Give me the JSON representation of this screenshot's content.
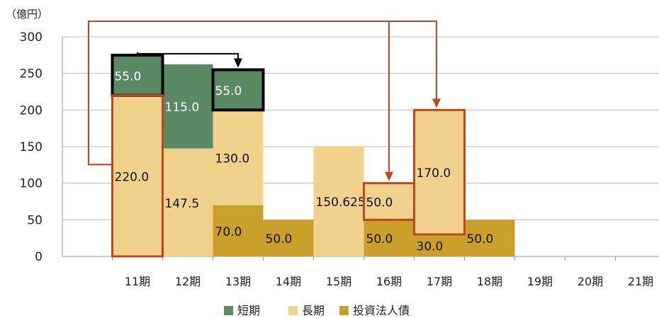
{
  "chart_data": {
    "type": "bar",
    "stacked": true,
    "unit_label": "（億円）",
    "ylim": [
      0,
      300
    ],
    "yticks": [
      "0",
      "50",
      "100",
      "150",
      "200",
      "250",
      "300"
    ],
    "categories": [
      "11期",
      "12期",
      "13期",
      "14期",
      "15期",
      "16期",
      "17期",
      "18期",
      "19期",
      "20期",
      "21期"
    ],
    "series": [
      {
        "name": "投資法人債",
        "color": "#c9a02a",
        "values": [
          0,
          0,
          70.0,
          50.0,
          0,
          50.0,
          30.0,
          50.0,
          0,
          0,
          0
        ],
        "labels": [
          "",
          "",
          "70.0",
          "50.0",
          "",
          "50.0",
          "30.0",
          "50.0",
          "",
          "",
          ""
        ]
      },
      {
        "name": "長期",
        "color": "#f0d28c",
        "values": [
          220.0,
          147.5,
          130.0,
          0,
          150.625,
          50.0,
          170.0,
          0,
          0,
          0,
          0
        ],
        "labels": [
          "220.0",
          "147.5",
          "130.0",
          "",
          "150.625",
          "50.0",
          "170.0",
          "",
          "",
          "",
          ""
        ]
      },
      {
        "name": "短期",
        "color": "#5a8a63",
        "values": [
          55.0,
          115.0,
          55.0,
          0,
          0,
          0,
          0,
          0,
          0,
          0,
          0
        ],
        "labels": [
          "55.0",
          "115.0",
          "55.0",
          "",
          "",
          "",
          "",
          "",
          "",
          "",
          ""
        ]
      }
    ],
    "legend": {
      "position": "bottom",
      "order": [
        "短期",
        "長期",
        "投資法人債"
      ]
    },
    "grid": "horizontal",
    "highlights": [
      {
        "category": "11期",
        "series": "短期",
        "style": "black"
      },
      {
        "category": "13期",
        "series": "短期",
        "style": "black"
      },
      {
        "category": "11期",
        "series": "長期",
        "style": "orange"
      },
      {
        "category": "16期",
        "series": "長期",
        "style": "orange"
      },
      {
        "category": "17期",
        "series": "長期",
        "style": "orange"
      }
    ],
    "arrows": [
      {
        "from": "11期",
        "to": "13期",
        "color": "#000000"
      },
      {
        "from": "11期",
        "to": "16期",
        "color": "#c0461c"
      },
      {
        "from": "11期",
        "to": "17期",
        "color": "#c0461c"
      }
    ]
  }
}
